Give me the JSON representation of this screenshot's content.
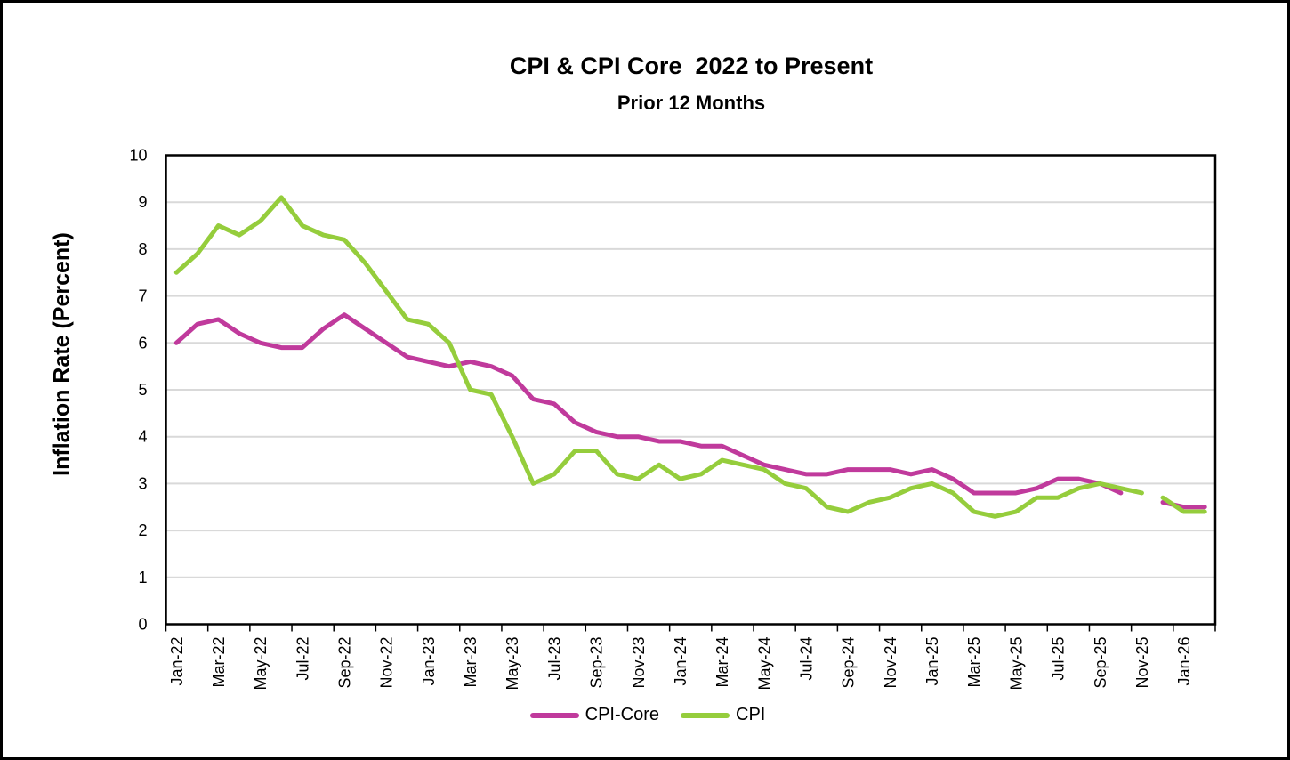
{
  "chart_data": {
    "type": "line",
    "title": "CPI & CPI Core  2022 to Present",
    "subtitle": "Prior 12 Months",
    "xlabel": "",
    "ylabel": "Inflation Rate (Percent)",
    "ylim": [
      0,
      10
    ],
    "y_ticks": [
      0,
      1,
      2,
      3,
      4,
      5,
      6,
      7,
      8,
      9,
      10
    ],
    "x_label_every": 2,
    "grid": "horizontal-light-gray",
    "legend_position": "bottom-center",
    "plot_border_color": "#000000",
    "gridline_color": "#d9d9d9",
    "categories": [
      "Jan-22",
      "Feb-22",
      "Mar-22",
      "Apr-22",
      "May-22",
      "Jun-22",
      "Jul-22",
      "Aug-22",
      "Sep-22",
      "Oct-22",
      "Nov-22",
      "Dec-22",
      "Jan-23",
      "Feb-23",
      "Mar-23",
      "Apr-23",
      "May-23",
      "Jun-23",
      "Jul-23",
      "Aug-23",
      "Sep-23",
      "Oct-23",
      "Nov-23",
      "Dec-23",
      "Jan-24",
      "Feb-24",
      "Mar-24",
      "Apr-24",
      "May-24",
      "Jun-24",
      "Jul-24",
      "Aug-24",
      "Sep-24",
      "Oct-24",
      "Nov-24",
      "Dec-24",
      "Jan-25",
      "Feb-25",
      "Mar-25",
      "Apr-25",
      "May-25",
      "Jun-25",
      "Jul-25",
      "Aug-25",
      "Sep-25",
      "Oct-25",
      "Nov-25",
      "Dec-25",
      "Jan-26",
      "Feb-26"
    ],
    "series": [
      {
        "name": "CPI-Core",
        "color": "#c03a9c",
        "line_width": 5,
        "segments": [
          {
            "start_index": 0,
            "values": [
              6.0,
              6.4,
              6.5,
              6.2,
              6.0,
              5.9,
              5.9,
              6.3,
              6.6,
              6.3,
              6.0,
              5.7,
              5.6,
              5.5,
              5.6,
              5.5,
              5.3,
              4.8,
              4.7,
              4.3,
              4.1,
              4.0,
              4.0,
              3.9,
              3.9,
              3.8,
              3.8,
              3.6,
              3.4,
              3.3,
              3.2,
              3.2,
              3.3,
              3.3,
              3.3,
              3.2,
              3.3,
              3.1,
              2.8,
              2.8,
              2.8,
              2.9,
              3.1,
              3.1,
              3.0,
              2.8
            ]
          },
          {
            "start_index": 47,
            "values": [
              2.6,
              2.5,
              2.5
            ]
          }
        ]
      },
      {
        "name": "CPI",
        "color": "#95cd3c",
        "line_width": 5,
        "segments": [
          {
            "start_index": 0,
            "values": [
              7.5,
              7.9,
              8.5,
              8.3,
              8.6,
              9.1,
              8.5,
              8.3,
              8.2,
              7.7,
              7.1,
              6.5,
              6.4,
              6.0,
              5.0,
              4.9,
              4.0,
              3.0,
              3.2,
              3.7,
              3.7,
              3.2,
              3.1,
              3.4,
              3.1,
              3.2,
              3.5,
              3.4,
              3.3,
              3.0,
              2.9,
              2.5,
              2.4,
              2.6,
              2.7,
              2.9,
              3.0,
              2.8,
              2.4,
              2.3,
              2.4,
              2.7,
              2.7,
              2.9,
              3.0,
              2.9,
              2.8
            ]
          },
          {
            "start_index": 47,
            "values": [
              2.7,
              2.4,
              2.4
            ]
          }
        ]
      }
    ]
  }
}
